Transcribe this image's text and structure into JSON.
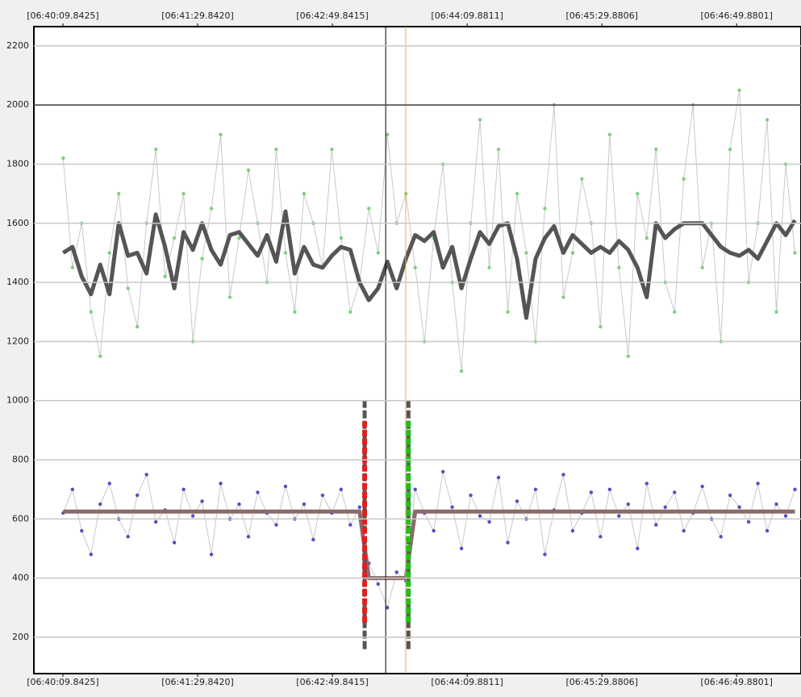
{
  "chart_data": {
    "type": "line",
    "x": [
      24010,
      24015.5,
      24021,
      24026.5,
      24032,
      24037.5,
      24043,
      24048.5,
      24054,
      24059.5,
      24065,
      24070.5,
      24076,
      24081.5,
      24087,
      24092.5,
      24098,
      24103.5,
      24109,
      24114.5,
      24120,
      24125.5,
      24131,
      24136.5,
      24142,
      24147.5,
      24153,
      24158.5,
      24164,
      24169.5,
      24175,
      24180.5,
      24186,
      24191.5,
      24197,
      24202.5,
      24208,
      24213.5,
      24219,
      24224.5,
      24230,
      24235.5,
      24241,
      24246.5,
      24252,
      24257.5,
      24263,
      24268.5,
      24274,
      24279.5,
      24285,
      24290.5,
      24296,
      24301.5,
      24307,
      24312.5,
      24318,
      24323.5,
      24329,
      24334.5,
      24340,
      24345.5,
      24351,
      24356.5,
      24362,
      24367.5,
      24373,
      24378.5,
      24384,
      24389.5,
      24395,
      24400.5,
      24406,
      24411.5,
      24417,
      24422.5,
      24428,
      24433.5,
      24439,
      24444.5
    ],
    "series": [
      {
        "mode": "markers+lines",
        "color": "#7ed07e",
        "line_color": "#c8c8c8",
        "values": [
          1820,
          1450,
          1600,
          1300,
          1150,
          1500,
          1700,
          1380,
          1250,
          1600,
          1850,
          1420,
          1550,
          1700,
          1200,
          1480,
          1650,
          1900,
          1350,
          1550,
          1780,
          1600,
          1400,
          1850,
          1500,
          1300,
          1700,
          1600,
          1450,
          1850,
          1550,
          1300,
          1400,
          1650,
          1500,
          1900,
          1600,
          1700,
          1450,
          1200,
          1550,
          1800,
          1400,
          1100,
          1600,
          1950,
          1450,
          1850,
          1300,
          1700,
          1500,
          1200,
          1650,
          2000,
          1350,
          1500,
          1750,
          1600,
          1250,
          1900,
          1450,
          1150,
          1700,
          1550,
          1850,
          1400,
          1300,
          1750,
          2000,
          1450,
          1600,
          1200,
          1850,
          2050,
          1400,
          1600,
          1950,
          1300,
          1800,
          1500
        ]
      },
      {
        "mode": "markers+lines",
        "color": "#5050c0",
        "line_color": "#c8c8c8",
        "values": [
          620,
          700,
          560,
          480,
          650,
          720,
          600,
          540,
          680,
          750,
          590,
          630,
          520,
          700,
          610,
          660,
          480,
          720,
          600,
          650,
          540,
          690,
          620,
          580,
          710,
          600,
          650,
          530,
          680,
          620,
          700,
          580,
          640,
          450,
          380,
          300,
          420,
          390,
          700,
          620,
          560,
          760,
          640,
          500,
          680,
          610,
          590,
          740,
          520,
          660,
          600,
          700,
          480,
          630,
          750,
          560,
          620,
          690,
          540,
          700,
          610,
          650,
          500,
          720,
          580,
          640,
          690,
          560,
          620,
          710,
          600,
          540,
          680,
          640,
          590,
          720,
          560,
          650,
          610,
          700
        ]
      },
      {
        "mode": "lines",
        "line_color": "#555555",
        "values": [
          1500,
          1520,
          1420,
          1360,
          1460,
          1360,
          1600,
          1490,
          1500,
          1430,
          1630,
          1520,
          1380,
          1570,
          1510,
          1600,
          1510,
          1460,
          1560,
          1570,
          1530,
          1490,
          1560,
          1470,
          1640,
          1430,
          1520,
          1460,
          1450,
          1490,
          1520,
          1510,
          1400,
          1340,
          1380,
          1470,
          1380,
          1480,
          1560,
          1540,
          1570,
          1450,
          1520,
          1380,
          1480,
          1570,
          1530,
          1590,
          1600,
          1480,
          1280,
          1480,
          1550,
          1590,
          1500,
          1560,
          1530,
          1500,
          1520,
          1500,
          1540,
          1510,
          1450,
          1350,
          1600,
          1550,
          1580,
          1600,
          1600,
          1600,
          1560,
          1520,
          1500,
          1490,
          1510,
          1480,
          1540,
          1600,
          1560,
          1610
        ]
      },
      {
        "mode": "lines",
        "line_color": "#8b6a6a",
        "values": [
          625,
          625,
          625,
          625,
          625,
          625,
          625,
          625,
          625,
          625,
          625,
          625,
          625,
          625,
          625,
          625,
          625,
          625,
          625,
          625,
          625,
          625,
          625,
          625,
          625,
          625,
          625,
          625,
          625,
          625,
          625,
          625,
          625,
          400,
          400,
          400,
          400,
          400,
          625,
          625,
          625,
          625,
          625,
          625,
          625,
          625,
          625,
          625,
          625,
          625,
          625,
          625,
          625,
          625,
          625,
          625,
          625,
          625,
          625,
          625,
          625,
          625,
          625,
          625,
          625,
          625,
          625,
          625,
          625,
          625,
          625,
          625,
          625,
          625,
          625,
          625,
          625,
          625,
          625,
          625
        ]
      }
    ],
    "markers": [
      {
        "x": 24189,
        "color": "#e02020",
        "range": [
          160,
          1000
        ],
        "inner_range": [
          250,
          930
        ]
      },
      {
        "x": 24215,
        "color": "#20c020",
        "range": [
          160,
          1000
        ],
        "inner_range": [
          250,
          930
        ]
      }
    ],
    "cursors": [
      {
        "x": 24201.5,
        "color": "#000000"
      },
      {
        "x": 24213.4,
        "color": "#e8b030"
      }
    ],
    "xlim": [
      23992.6,
      24448.1
    ],
    "xticks": [
      {
        "value": 24009.8425,
        "label": "[06:40:09.8425]"
      },
      {
        "value": 24089.842,
        "label": "[06:41:29.8420]"
      },
      {
        "value": 24169.8415,
        "label": "[06:42:49.8415]"
      },
      {
        "value": 24249.8811,
        "label": "[06:44:09.8811]"
      },
      {
        "value": 24329.8806,
        "label": "[06:45:29.8806]"
      },
      {
        "value": 24409.8801,
        "label": "[06:46:49.8801]"
      }
    ],
    "ylim": [
      77,
      2265
    ],
    "yticks": [
      200,
      400,
      600,
      800,
      1000,
      1200,
      1400,
      1600,
      1800,
      2000,
      2200
    ],
    "reference_lines": [
      2000
    ],
    "grid": true
  }
}
